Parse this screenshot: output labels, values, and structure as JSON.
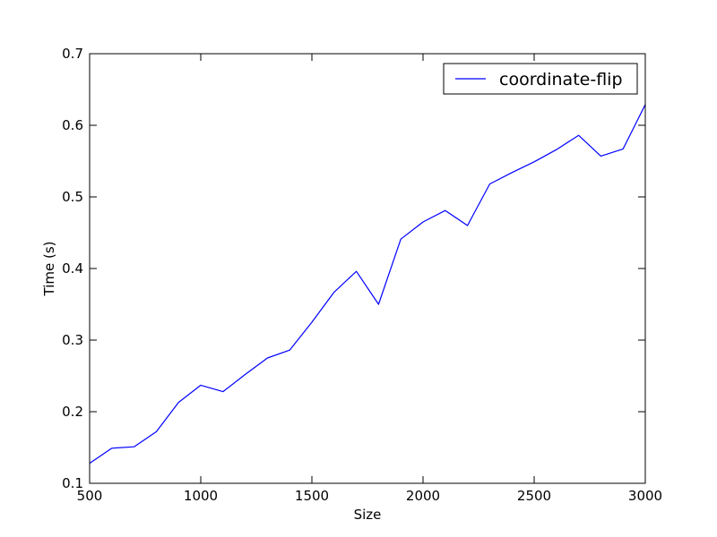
{
  "chart_data": {
    "type": "line",
    "title": "",
    "xlabel": "Size",
    "ylabel": "Time (s)",
    "xlim": [
      500,
      3000
    ],
    "ylim": [
      0.1,
      0.7
    ],
    "xticks": [
      "500",
      "1000",
      "1500",
      "2000",
      "2500",
      "3000"
    ],
    "yticks": [
      "0.1",
      "0.2",
      "0.3",
      "0.4",
      "0.5",
      "0.6",
      "0.7"
    ],
    "grid": false,
    "legend_position": "top-right",
    "series": [
      {
        "name": "coordinate-flip",
        "color": "#0000ff",
        "x": [
          500,
          600,
          700,
          800,
          900,
          1000,
          1100,
          1200,
          1300,
          1400,
          1500,
          1600,
          1700,
          1800,
          1900,
          2000,
          2100,
          2200,
          2300,
          2400,
          2500,
          2600,
          2700,
          2800,
          2900,
          3000
        ],
        "y": [
          0.128,
          0.149,
          0.151,
          0.172,
          0.213,
          0.237,
          0.228,
          0.252,
          0.275,
          0.286,
          0.325,
          0.367,
          0.396,
          0.35,
          0.441,
          0.465,
          0.481,
          0.46,
          0.518,
          0.534,
          0.549,
          0.566,
          0.586,
          0.557,
          0.567,
          0.629
        ]
      }
    ]
  }
}
